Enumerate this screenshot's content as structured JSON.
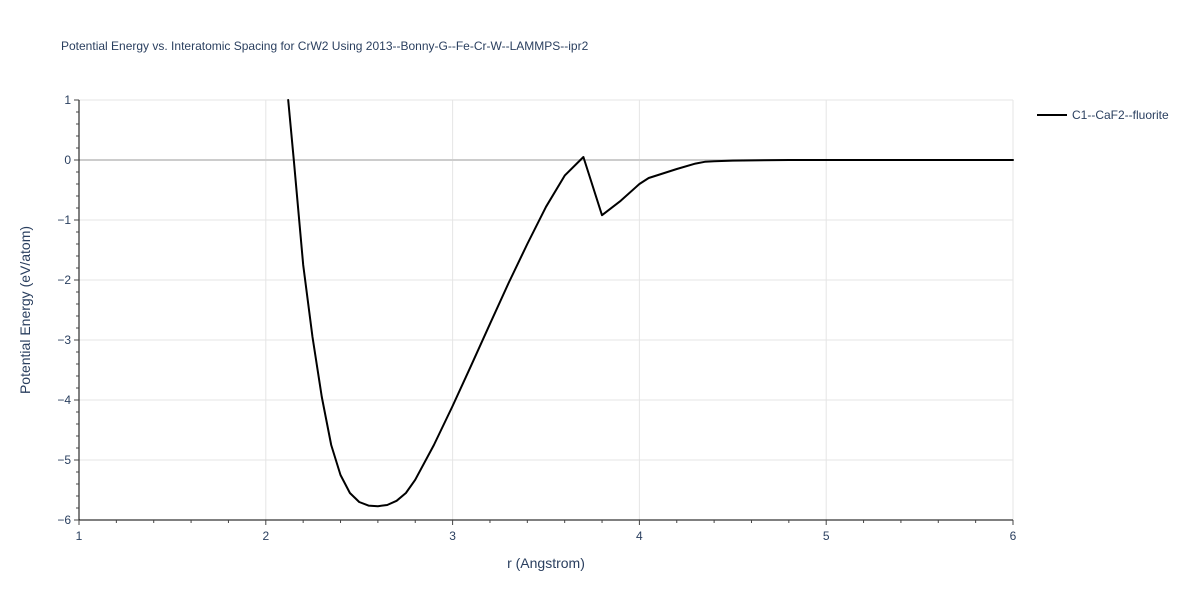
{
  "chart_data": {
    "type": "line",
    "title": "Potential Energy vs. Interatomic Spacing for CrW2 Using 2013--Bonny-G--Fe-Cr-W--LAMMPS--ipr2",
    "xlabel": "r (Angstrom)",
    "ylabel": "Potential Energy (eV/atom)",
    "xlim": [
      1,
      6
    ],
    "ylim": [
      -6,
      1
    ],
    "x_ticks": [
      1,
      2,
      3,
      4,
      5,
      6
    ],
    "y_ticks": [
      1,
      0,
      -1,
      -2,
      -3,
      -4,
      -5,
      -6
    ],
    "x_tick_labels": [
      "1",
      "2",
      "3",
      "4",
      "5",
      "6"
    ],
    "y_tick_labels": [
      "1",
      "0",
      "−1",
      "−2",
      "−3",
      "−4",
      "−5",
      "−6"
    ],
    "grid": true,
    "zero_line": true,
    "legend_position": "top-right",
    "series": [
      {
        "name": "C1--CaF2--fluorite",
        "color": "#000000",
        "x": [
          2.12,
          2.15,
          2.2,
          2.25,
          2.3,
          2.35,
          2.4,
          2.45,
          2.5,
          2.55,
          2.6,
          2.65,
          2.7,
          2.75,
          2.8,
          2.9,
          3.0,
          3.1,
          3.2,
          3.3,
          3.4,
          3.5,
          3.6,
          3.7,
          3.8,
          3.9,
          4.0,
          4.05,
          4.1,
          4.2,
          4.3,
          4.35,
          4.4,
          4.5,
          4.8,
          5.0,
          5.5,
          6.0
        ],
        "y": [
          1.0,
          0.0,
          -1.75,
          -2.95,
          -3.95,
          -4.75,
          -5.25,
          -5.55,
          -5.7,
          -5.76,
          -5.77,
          -5.75,
          -5.68,
          -5.55,
          -5.33,
          -4.75,
          -4.1,
          -3.42,
          -2.73,
          -2.05,
          -1.4,
          -0.78,
          -0.26,
          0.05,
          -0.92,
          -0.68,
          -0.4,
          -0.3,
          -0.25,
          -0.15,
          -0.06,
          -0.03,
          -0.02,
          -0.01,
          0.0,
          0.0,
          0.0,
          0.0
        ]
      }
    ]
  }
}
